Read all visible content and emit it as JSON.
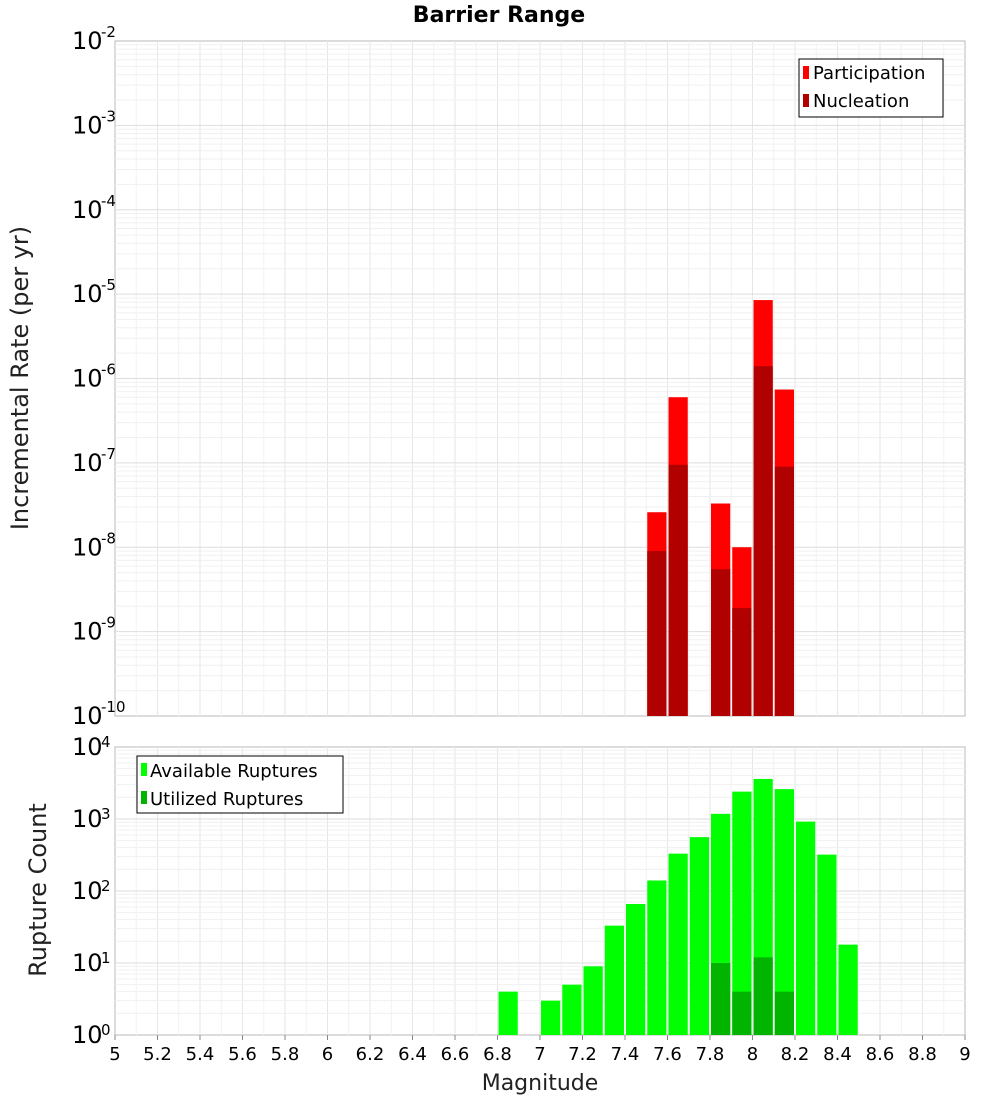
{
  "chart_data": [
    {
      "type": "bar",
      "title": "Barrier Range",
      "ylabel": "Incremental Rate (per yr)",
      "xlabel": "",
      "yscale": "log",
      "ylim_exp": [
        -10,
        -2
      ],
      "xlim": [
        5,
        9
      ],
      "bin_width": 0.1,
      "ytick_exponents": [
        "-10",
        "-9",
        "-8",
        "-7",
        "-6",
        "-5",
        "-4",
        "-3",
        "-2"
      ],
      "legend_position": "top-right",
      "series": [
        {
          "name": "Participation",
          "color": "#ff0000",
          "points": [
            {
              "x": 7.55,
              "y": 2.6e-08
            },
            {
              "x": 7.65,
              "y": 6e-07
            },
            {
              "x": 7.85,
              "y": 3.3e-08
            },
            {
              "x": 7.95,
              "y": 1e-08
            },
            {
              "x": 8.05,
              "y": 8.5e-06
            },
            {
              "x": 8.15,
              "y": 7.4e-07
            }
          ]
        },
        {
          "name": "Nucleation",
          "color": "#b00000",
          "points": [
            {
              "x": 7.55,
              "y": 9e-09
            },
            {
              "x": 7.65,
              "y": 9.5e-08
            },
            {
              "x": 7.85,
              "y": 5.5e-09
            },
            {
              "x": 7.95,
              "y": 1.9e-09
            },
            {
              "x": 8.05,
              "y": 1.4e-06
            },
            {
              "x": 8.15,
              "y": 9e-08
            }
          ]
        }
      ]
    },
    {
      "type": "bar",
      "title": "",
      "ylabel": "Rupture Count",
      "xlabel": "Magnitude",
      "yscale": "log",
      "ylim_exp": [
        0,
        4
      ],
      "xlim": [
        5,
        9
      ],
      "bin_width": 0.1,
      "ytick_exponents": [
        "0",
        "1",
        "2",
        "3",
        "4"
      ],
      "xticks": [
        "5",
        "5.2",
        "5.4",
        "5.6",
        "5.8",
        "6",
        "6.2",
        "6.4",
        "6.6",
        "6.8",
        "7",
        "7.2",
        "7.4",
        "7.6",
        "7.8",
        "8",
        "8.2",
        "8.4",
        "8.6",
        "8.8",
        "9"
      ],
      "legend_position": "top-left",
      "series": [
        {
          "name": "Available Ruptures",
          "color": "#00ff00",
          "points": [
            {
              "x": 6.85,
              "y": 4
            },
            {
              "x": 7.05,
              "y": 3
            },
            {
              "x": 7.15,
              "y": 5
            },
            {
              "x": 7.25,
              "y": 9
            },
            {
              "x": 7.35,
              "y": 33
            },
            {
              "x": 7.45,
              "y": 66
            },
            {
              "x": 7.55,
              "y": 140
            },
            {
              "x": 7.65,
              "y": 330
            },
            {
              "x": 7.75,
              "y": 560
            },
            {
              "x": 7.85,
              "y": 1180
            },
            {
              "x": 7.95,
              "y": 2400
            },
            {
              "x": 8.05,
              "y": 3600
            },
            {
              "x": 8.15,
              "y": 2600
            },
            {
              "x": 8.25,
              "y": 920
            },
            {
              "x": 8.35,
              "y": 320
            },
            {
              "x": 8.45,
              "y": 18
            }
          ]
        },
        {
          "name": "Utilized Ruptures",
          "color": "#00b400",
          "points": [
            {
              "x": 7.55,
              "y": 1
            },
            {
              "x": 7.65,
              "y": 1
            },
            {
              "x": 7.75,
              "y": 1
            },
            {
              "x": 7.85,
              "y": 10
            },
            {
              "x": 7.95,
              "y": 4
            },
            {
              "x": 8.05,
              "y": 12
            },
            {
              "x": 8.15,
              "y": 4
            }
          ]
        }
      ]
    }
  ]
}
